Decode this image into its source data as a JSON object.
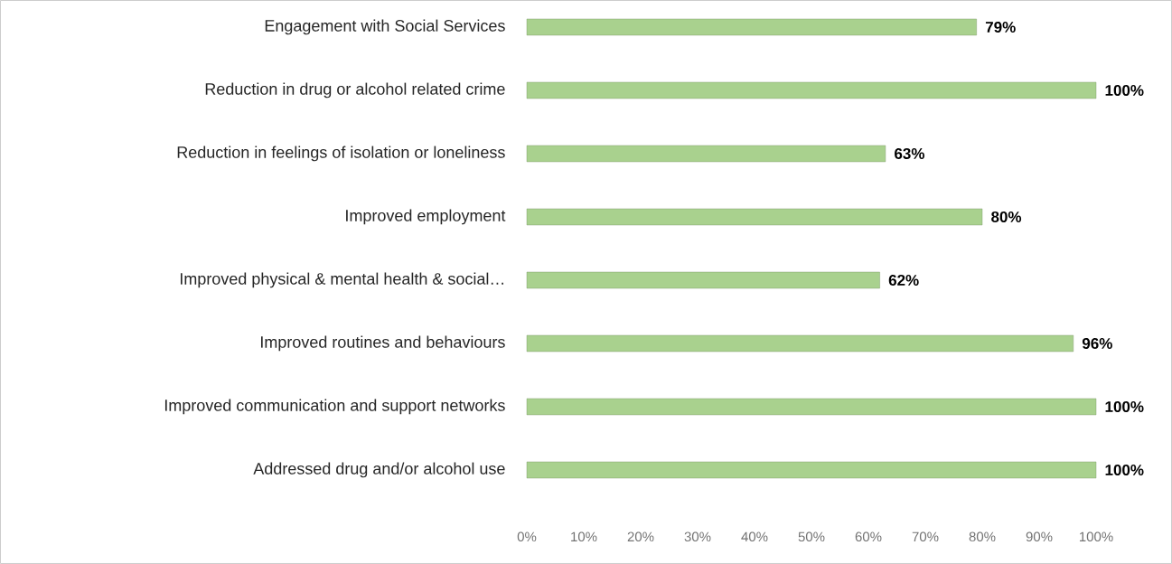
{
  "chart_data": {
    "type": "bar",
    "orientation": "horizontal",
    "categories": [
      "Engagement with Social Services",
      "Reduction in drug or alcohol related crime",
      "Reduction in feelings of isolation or loneliness",
      "Improved employment",
      "Improved physical & mental health & social…",
      "Improved routines and behaviours",
      "Improved communication and support networks",
      "Addressed drug and/or alcohol use"
    ],
    "values": [
      79,
      100,
      63,
      80,
      62,
      96,
      100,
      100
    ],
    "value_labels": [
      "79%",
      "100%",
      "63%",
      "80%",
      "62%",
      "96%",
      "100%",
      "100%"
    ],
    "color": "#a9d18e",
    "xlim": [
      0,
      100
    ],
    "xticks": [
      {
        "value": 0,
        "label": "0%"
      },
      {
        "value": 10,
        "label": "10%"
      },
      {
        "value": 20,
        "label": "20%"
      },
      {
        "value": 30,
        "label": "30%"
      },
      {
        "value": 40,
        "label": "40%"
      },
      {
        "value": 50,
        "label": "50%"
      },
      {
        "value": 60,
        "label": "60%"
      },
      {
        "value": 70,
        "label": "70%"
      },
      {
        "value": 80,
        "label": "80%"
      },
      {
        "value": 90,
        "label": "90%"
      },
      {
        "value": 100,
        "label": "100%"
      }
    ]
  }
}
